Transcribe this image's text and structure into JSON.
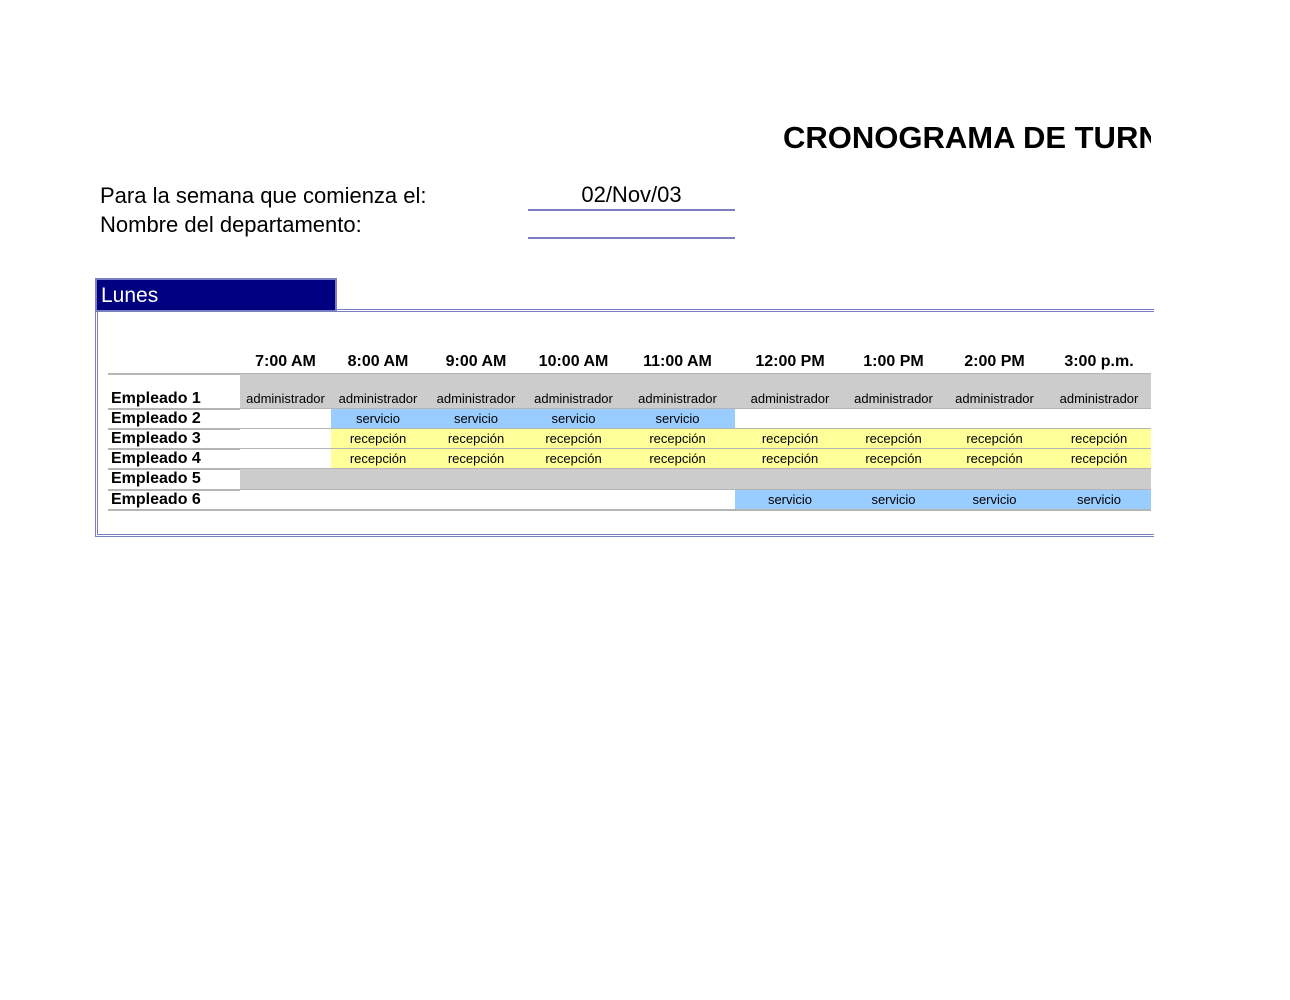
{
  "title": "CRONOGRAMA DE TURNOS",
  "form": {
    "week_label": "Para la semana que comienza el:",
    "week_value": "02/Nov/03",
    "department_label": "Nombre del departamento:",
    "department_value": ""
  },
  "day": "Lunes",
  "times": [
    "7:00 AM",
    "8:00 AM",
    "9:00 AM",
    "10:00 AM",
    "11:00 AM",
    "12:00 PM",
    "1:00 PM",
    "2:00 PM",
    "3:00 p.m."
  ],
  "colors": {
    "gray": "#cccccc",
    "blue": "#99ccff",
    "yellow": "#ffff99",
    "white": "#ffffff",
    "header": "#000080"
  },
  "employees": [
    {
      "name": "Empleado 1",
      "cells": [
        [
          "administrador",
          "gray"
        ],
        [
          "administrador",
          "gray"
        ],
        [
          "administrador",
          "gray"
        ],
        [
          "administrador",
          "gray"
        ],
        [
          "administrador",
          "gray"
        ],
        [
          "administrador",
          "gray"
        ],
        [
          "administrador",
          "gray"
        ],
        [
          "administrador",
          "gray"
        ],
        [
          "administrador",
          "gray"
        ]
      ]
    },
    {
      "name": "Empleado 2",
      "cells": [
        [
          "",
          "white"
        ],
        [
          "servicio",
          "blue"
        ],
        [
          "servicio",
          "blue"
        ],
        [
          "servicio",
          "blue"
        ],
        [
          "servicio",
          "blue"
        ],
        [
          "",
          "white"
        ],
        [
          "",
          "white"
        ],
        [
          "",
          "white"
        ],
        [
          "",
          "white"
        ]
      ]
    },
    {
      "name": "Empleado 3",
      "cells": [
        [
          "",
          "white"
        ],
        [
          "recepción",
          "yellow"
        ],
        [
          "recepción",
          "yellow"
        ],
        [
          "recepción",
          "yellow"
        ],
        [
          "recepción",
          "yellow"
        ],
        [
          "recepción",
          "yellow"
        ],
        [
          "recepción",
          "yellow"
        ],
        [
          "recepción",
          "yellow"
        ],
        [
          "recepción",
          "yellow"
        ]
      ]
    },
    {
      "name": "Empleado 4",
      "cells": [
        [
          "",
          "white"
        ],
        [
          "recepción",
          "yellow"
        ],
        [
          "recepción",
          "yellow"
        ],
        [
          "recepción",
          "yellow"
        ],
        [
          "recepción",
          "yellow"
        ],
        [
          "recepción",
          "yellow"
        ],
        [
          "recepción",
          "yellow"
        ],
        [
          "recepción",
          "yellow"
        ],
        [
          "recepción",
          "yellow"
        ]
      ]
    },
    {
      "name": "Empleado 5",
      "cells": [
        [
          "",
          "gray"
        ],
        [
          "",
          "gray"
        ],
        [
          "",
          "gray"
        ],
        [
          "",
          "gray"
        ],
        [
          "",
          "gray"
        ],
        [
          "",
          "gray"
        ],
        [
          "",
          "gray"
        ],
        [
          "",
          "gray"
        ],
        [
          "",
          "gray"
        ]
      ]
    },
    {
      "name": "Empleado 6",
      "cells": [
        [
          "",
          "white"
        ],
        [
          "",
          "white"
        ],
        [
          "",
          "white"
        ],
        [
          "",
          "white"
        ],
        [
          "",
          "white"
        ],
        [
          "servicio",
          "blue"
        ],
        [
          "servicio",
          "blue"
        ],
        [
          "servicio",
          "blue"
        ],
        [
          "servicio",
          "blue"
        ]
      ]
    }
  ]
}
